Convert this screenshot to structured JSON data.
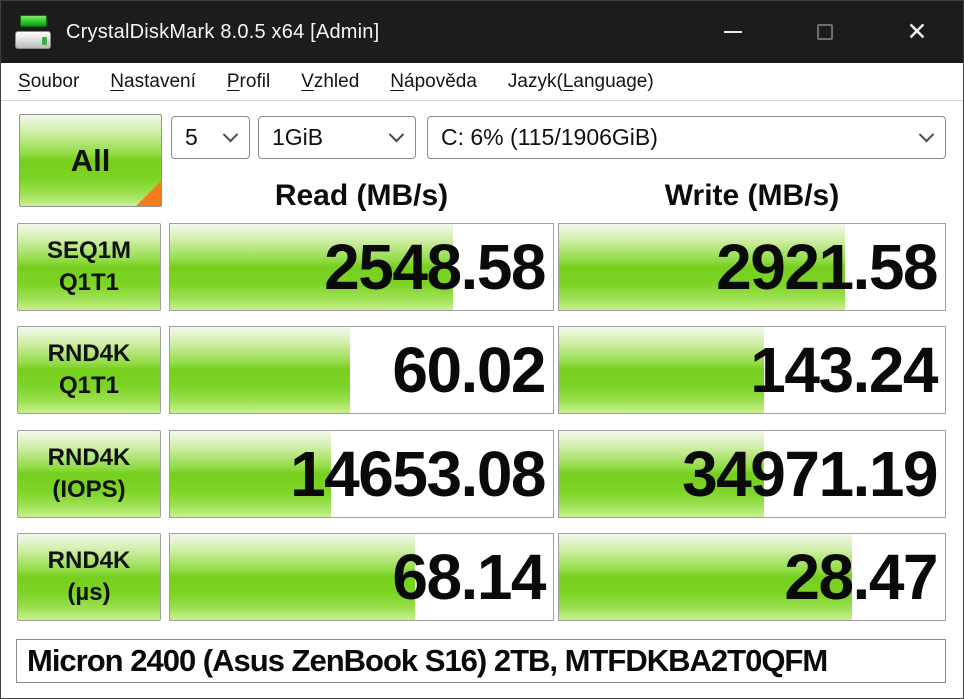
{
  "window": {
    "title": "CrystalDiskMark 8.0.5 x64 [Admin]",
    "titlebar_color": "#1c1c1c",
    "icons": [
      "disk-icon",
      "minimize-icon",
      "maximize-icon",
      "close-icon",
      "chevron-down-icon"
    ]
  },
  "menu": {
    "items": [
      {
        "pre": "",
        "u": "S",
        "post": "oubor"
      },
      {
        "pre": "",
        "u": "N",
        "post": "astavení"
      },
      {
        "pre": "",
        "u": "P",
        "post": "rofil"
      },
      {
        "pre": "",
        "u": "V",
        "post": "zhled"
      },
      {
        "pre": "",
        "u": "N",
        "post": "ápověda"
      },
      {
        "pre": "Jazyk(",
        "u": "L",
        "post": "anguage)"
      }
    ]
  },
  "controls": {
    "all_button_label": "All",
    "loop_count": "5",
    "test_size": "1GiB",
    "target_drive": "C: 6% (115/1906GiB)"
  },
  "columns": {
    "read": "Read (MB/s)",
    "write": "Write (MB/s)"
  },
  "rows": [
    {
      "label_line1": "SEQ1M",
      "label_line2": "Q1T1",
      "read": "2548.58",
      "write": "2921.58",
      "read_fill": 74,
      "write_fill": 74
    },
    {
      "label_line1": "RND4K",
      "label_line2": "Q1T1",
      "read": "60.02",
      "write": "143.24",
      "read_fill": 47,
      "write_fill": 53
    },
    {
      "label_line1": "RND4K",
      "label_line2": "(IOPS)",
      "read": "14653.08",
      "write": "34971.19",
      "read_fill": 42,
      "write_fill": 53
    },
    {
      "label_line1": "RND4K",
      "label_line2": "(µs)",
      "read": "68.14",
      "write": "28.47",
      "read_fill": 64,
      "write_fill": 76
    }
  ],
  "footer": {
    "text": "Micron 2400 (Asus ZenBook S16) 2TB, MTFDKBA2T0QFM"
  },
  "colors": {
    "bar_green_mid": "#76ce1d",
    "bar_green_light": "#c9f08d",
    "corner_orange": "#f57c1b",
    "cell_border": "#a0a0a0"
  }
}
